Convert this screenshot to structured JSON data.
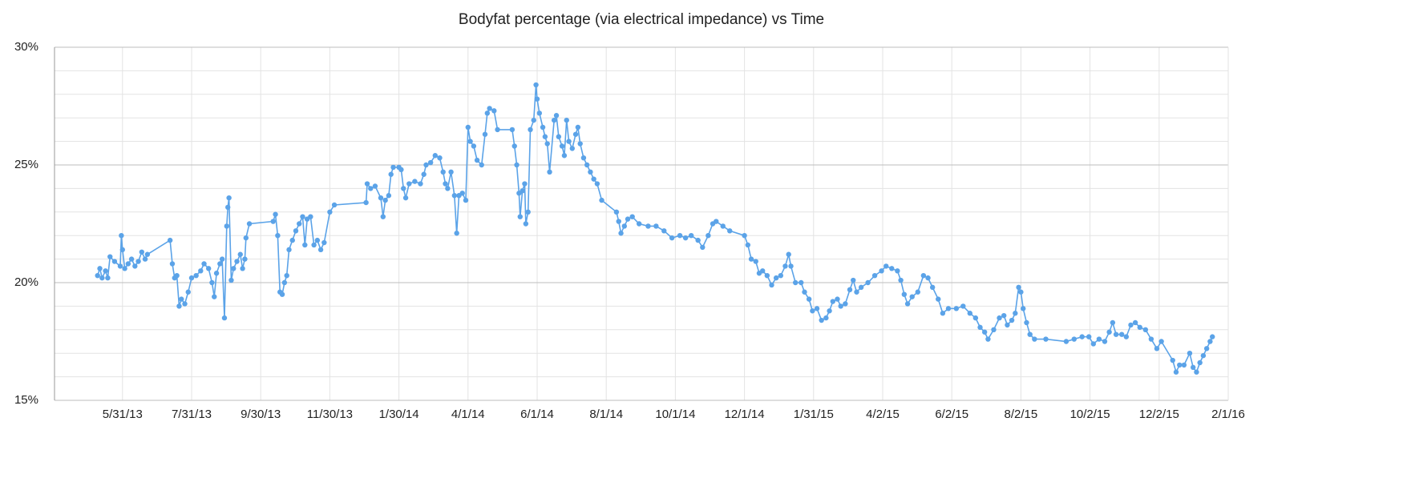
{
  "chart_data": {
    "type": "line",
    "title": "Bodyfat percentage (via electrical impedance) vs Time",
    "color": "#5ba3e8",
    "grid": true,
    "xlim": [
      "2013-04-01",
      "2016-02-01"
    ],
    "xticks": [
      {
        "value": "2013-05-31",
        "label": "5/31/13"
      },
      {
        "value": "2013-07-31",
        "label": "7/31/13"
      },
      {
        "value": "2013-09-30",
        "label": "9/30/13"
      },
      {
        "value": "2013-11-30",
        "label": "11/30/13"
      },
      {
        "value": "2014-01-30",
        "label": "1/30/14"
      },
      {
        "value": "2014-04-01",
        "label": "4/1/14"
      },
      {
        "value": "2014-06-01",
        "label": "6/1/14"
      },
      {
        "value": "2014-08-01",
        "label": "8/1/14"
      },
      {
        "value": "2014-10-01",
        "label": "10/1/14"
      },
      {
        "value": "2014-12-01",
        "label": "12/1/14"
      },
      {
        "value": "2015-01-31",
        "label": "1/31/15"
      },
      {
        "value": "2015-04-02",
        "label": "4/2/15"
      },
      {
        "value": "2015-06-02",
        "label": "6/2/15"
      },
      {
        "value": "2015-08-02",
        "label": "8/2/15"
      },
      {
        "value": "2015-10-02",
        "label": "10/2/15"
      },
      {
        "value": "2015-12-02",
        "label": "12/2/15"
      },
      {
        "value": "2016-02-01",
        "label": "2/1/16"
      }
    ],
    "ylim": [
      15,
      30
    ],
    "yticks": [
      {
        "value": 15,
        "label": "15%"
      },
      {
        "value": 20,
        "label": "20%"
      },
      {
        "value": 25,
        "label": "25%"
      },
      {
        "value": 30,
        "label": "30%"
      }
    ],
    "minor_yticks": [
      16,
      17,
      18,
      19,
      21,
      22,
      23,
      24,
      26,
      27,
      28,
      29
    ],
    "x": [
      "2013-05-09",
      "2013-05-11",
      "2013-05-13",
      "2013-05-16",
      "2013-05-18",
      "2013-05-20",
      "2013-05-24",
      "2013-05-29",
      "2013-05-30",
      "2013-05-31",
      "2013-06-02",
      "2013-06-05",
      "2013-06-08",
      "2013-06-11",
      "2013-06-14",
      "2013-06-17",
      "2013-06-20",
      "2013-06-22",
      "2013-07-12",
      "2013-07-14",
      "2013-07-16",
      "2013-07-18",
      "2013-07-20",
      "2013-07-22",
      "2013-07-25",
      "2013-07-28",
      "2013-07-31",
      "2013-08-04",
      "2013-08-08",
      "2013-08-11",
      "2013-08-15",
      "2013-08-18",
      "2013-08-20",
      "2013-08-22",
      "2013-08-25",
      "2013-08-27",
      "2013-08-29",
      "2013-08-31",
      "2013-09-01",
      "2013-09-02",
      "2013-09-04",
      "2013-09-06",
      "2013-09-09",
      "2013-09-12",
      "2013-09-14",
      "2013-09-16",
      "2013-09-17",
      "2013-09-20",
      "2013-10-11",
      "2013-10-13",
      "2013-10-15",
      "2013-10-17",
      "2013-10-19",
      "2013-10-21",
      "2013-10-23",
      "2013-10-25",
      "2013-10-28",
      "2013-10-31",
      "2013-11-03",
      "2013-11-06",
      "2013-11-08",
      "2013-11-10",
      "2013-11-13",
      "2013-11-16",
      "2013-11-19",
      "2013-11-22",
      "2013-11-25",
      "2013-11-30",
      "2013-12-04",
      "2014-01-01",
      "2014-01-02",
      "2014-01-05",
      "2014-01-09",
      "2014-01-14",
      "2014-01-16",
      "2014-01-18",
      "2014-01-21",
      "2014-01-23",
      "2014-01-25",
      "2014-01-30",
      "2014-02-01",
      "2014-02-03",
      "2014-02-05",
      "2014-02-08",
      "2014-02-13",
      "2014-02-18",
      "2014-02-21",
      "2014-02-23",
      "2014-02-27",
      "2014-03-03",
      "2014-03-07",
      "2014-03-10",
      "2014-03-12",
      "2014-03-14",
      "2014-03-17",
      "2014-03-20",
      "2014-03-22",
      "2014-03-24",
      "2014-03-27",
      "2014-03-30",
      "2014-04-01",
      "2014-04-03",
      "2014-04-06",
      "2014-04-09",
      "2014-04-13",
      "2014-04-16",
      "2014-04-18",
      "2014-04-20",
      "2014-04-24",
      "2014-04-27",
      "2014-05-10",
      "2014-05-12",
      "2014-05-14",
      "2014-05-16",
      "2014-05-17",
      "2014-05-19",
      "2014-05-21",
      "2014-05-22",
      "2014-05-24",
      "2014-05-26",
      "2014-05-29",
      "2014-05-31",
      "2014-06-01",
      "2014-06-03",
      "2014-06-06",
      "2014-06-08",
      "2014-06-10",
      "2014-06-12",
      "2014-06-16",
      "2014-06-18",
      "2014-06-20",
      "2014-06-23",
      "2014-06-25",
      "2014-06-27",
      "2014-06-29",
      "2014-07-02",
      "2014-07-05",
      "2014-07-07",
      "2014-07-09",
      "2014-07-12",
      "2014-07-15",
      "2014-07-18",
      "2014-07-21",
      "2014-07-24",
      "2014-07-28",
      "2014-08-10",
      "2014-08-12",
      "2014-08-14",
      "2014-08-17",
      "2014-08-20",
      "2014-08-24",
      "2014-08-30",
      "2014-09-07",
      "2014-09-14",
      "2014-09-21",
      "2014-09-28",
      "2014-10-05",
      "2014-10-10",
      "2014-10-15",
      "2014-10-21",
      "2014-10-25",
      "2014-10-30",
      "2014-11-03",
      "2014-11-06",
      "2014-11-12",
      "2014-11-18",
      "2014-12-01",
      "2014-12-04",
      "2014-12-07",
      "2014-12-11",
      "2014-12-14",
      "2014-12-17",
      "2014-12-21",
      "2014-12-25",
      "2014-12-29",
      "2015-01-02",
      "2015-01-06",
      "2015-01-09",
      "2015-01-11",
      "2015-01-15",
      "2015-01-20",
      "2015-01-23",
      "2015-01-27",
      "2015-01-30",
      "2015-02-03",
      "2015-02-07",
      "2015-02-11",
      "2015-02-14",
      "2015-02-17",
      "2015-02-21",
      "2015-02-24",
      "2015-02-28",
      "2015-03-04",
      "2015-03-07",
      "2015-03-10",
      "2015-03-14",
      "2015-03-20",
      "2015-03-26",
      "2015-04-01",
      "2015-04-05",
      "2015-04-10",
      "2015-04-15",
      "2015-04-18",
      "2015-04-21",
      "2015-04-24",
      "2015-04-28",
      "2015-05-03",
      "2015-05-08",
      "2015-05-12",
      "2015-05-16",
      "2015-05-21",
      "2015-05-25",
      "2015-05-30",
      "2015-06-06",
      "2015-06-12",
      "2015-06-18",
      "2015-06-23",
      "2015-06-27",
      "2015-07-01",
      "2015-07-04",
      "2015-07-09",
      "2015-07-14",
      "2015-07-18",
      "2015-07-21",
      "2015-07-25",
      "2015-07-28",
      "2015-07-31",
      "2015-08-02",
      "2015-08-04",
      "2015-08-07",
      "2015-08-10",
      "2015-08-14",
      "2015-08-24",
      "2015-09-11",
      "2015-09-18",
      "2015-09-25",
      "2015-10-01",
      "2015-10-05",
      "2015-10-10",
      "2015-10-15",
      "2015-10-19",
      "2015-10-22",
      "2015-10-25",
      "2015-10-30",
      "2015-11-03",
      "2015-11-07",
      "2015-11-11",
      "2015-11-15",
      "2015-11-20",
      "2015-11-25",
      "2015-11-30",
      "2015-12-04",
      "2015-12-14",
      "2015-12-17",
      "2015-12-20",
      "2015-12-24",
      "2015-12-29",
      "2016-01-01",
      "2016-01-04",
      "2016-01-07",
      "2016-01-10",
      "2016-01-13",
      "2016-01-16",
      "2016-01-18"
    ],
    "values": [
      20.3,
      20.6,
      20.2,
      20.5,
      20.2,
      21.1,
      20.9,
      20.7,
      22.0,
      21.4,
      20.6,
      20.8,
      21.0,
      20.7,
      20.9,
      21.3,
      21.0,
      21.2,
      21.8,
      20.8,
      20.2,
      20.3,
      19.0,
      19.3,
      19.1,
      19.6,
      20.2,
      20.3,
      20.5,
      20.8,
      20.6,
      20.0,
      19.4,
      20.4,
      20.8,
      21.0,
      18.5,
      22.4,
      23.2,
      23.6,
      20.1,
      20.6,
      20.9,
      21.2,
      20.6,
      21.0,
      21.9,
      22.5,
      22.6,
      22.9,
      22.0,
      19.6,
      19.5,
      20.0,
      20.3,
      21.4,
      21.8,
      22.2,
      22.5,
      22.8,
      21.6,
      22.7,
      22.8,
      21.6,
      21.8,
      21.4,
      21.7,
      23.0,
      23.3,
      23.4,
      24.2,
      24.0,
      24.1,
      23.6,
      22.8,
      23.5,
      23.7,
      24.6,
      24.9,
      24.9,
      24.8,
      24.0,
      23.6,
      24.2,
      24.3,
      24.2,
      24.6,
      25.0,
      25.1,
      25.4,
      25.3,
      24.7,
      24.2,
      24.0,
      24.7,
      23.7,
      22.1,
      23.7,
      23.8,
      23.5,
      26.6,
      26.0,
      25.8,
      25.2,
      25.0,
      26.3,
      27.2,
      27.4,
      27.3,
      26.5,
      26.5,
      25.8,
      25.0,
      23.8,
      22.8,
      23.9,
      24.2,
      22.5,
      23.0,
      26.5,
      26.9,
      28.4,
      27.8,
      27.2,
      26.6,
      26.2,
      25.9,
      24.7,
      26.9,
      27.1,
      26.2,
      25.8,
      25.4,
      26.9,
      26.0,
      25.7,
      26.3,
      26.6,
      25.9,
      25.3,
      25.0,
      24.7,
      24.4,
      24.2,
      23.5,
      23.0,
      22.6,
      22.1,
      22.4,
      22.7,
      22.8,
      22.5,
      22.4,
      22.4,
      22.2,
      21.9,
      22.0,
      21.9,
      22.0,
      21.8,
      21.5,
      22.0,
      22.5,
      22.6,
      22.4,
      22.2,
      22.0,
      21.6,
      21.0,
      20.9,
      20.4,
      20.5,
      20.3,
      19.9,
      20.2,
      20.3,
      20.7,
      21.2,
      20.7,
      20.0,
      20.0,
      19.6,
      19.3,
      18.8,
      18.9,
      18.4,
      18.5,
      18.8,
      19.2,
      19.3,
      19.0,
      19.1,
      19.7,
      20.1,
      19.6,
      19.8,
      20.0,
      20.3,
      20.5,
      20.7,
      20.6,
      20.5,
      20.1,
      19.5,
      19.1,
      19.4,
      19.6,
      20.3,
      20.2,
      19.8,
      19.3,
      18.7,
      18.9,
      18.9,
      19.0,
      18.7,
      18.5,
      18.1,
      17.9,
      17.6,
      18.0,
      18.5,
      18.6,
      18.2,
      18.4,
      18.7,
      19.8,
      19.6,
      18.9,
      18.3,
      17.8,
      17.6,
      17.6,
      17.5,
      17.6,
      17.7,
      17.7,
      17.4,
      17.6,
      17.5,
      17.9,
      18.3,
      17.8,
      17.8,
      17.7,
      18.2,
      18.3,
      18.1,
      18.0,
      17.6,
      17.2,
      17.5,
      16.7,
      16.2,
      16.5,
      16.5,
      17.0,
      16.4,
      16.2,
      16.6,
      16.9,
      17.2,
      17.5,
      17.7
    ]
  }
}
